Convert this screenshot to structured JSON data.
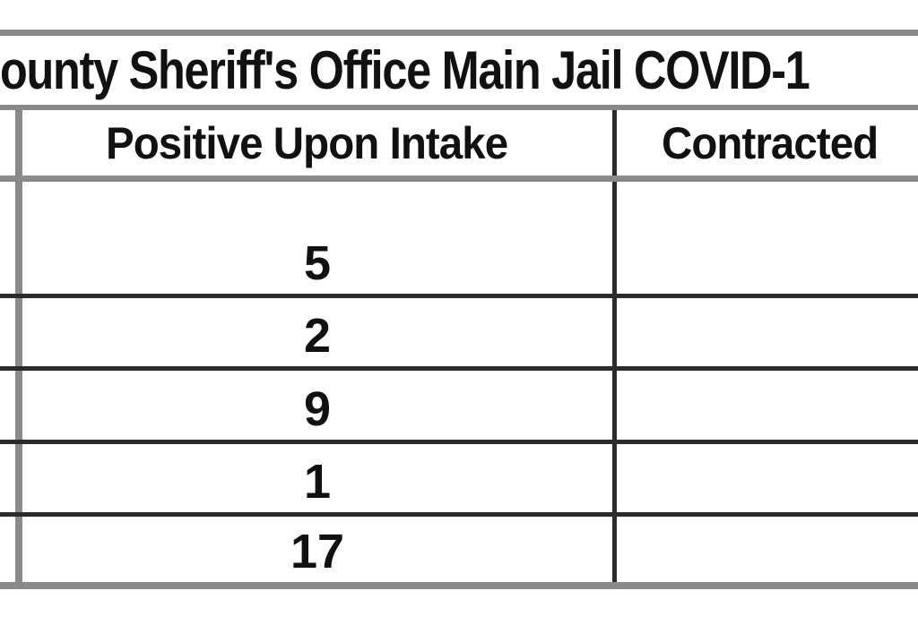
{
  "table": {
    "title_visible": "ounty Sheriff's Office Main Jail COVID-1",
    "headers": {
      "positive": "Positive Upon Intake",
      "contracted": "Contracted"
    },
    "rows": [
      "5",
      "2",
      "9",
      "1",
      "17"
    ]
  },
  "chart_data": {
    "type": "table",
    "title": "ounty Sheriff's Office Main Jail COVID-1",
    "columns": [
      "Positive Upon Intake",
      "Contracted"
    ],
    "rows": [
      [
        "5",
        ""
      ],
      [
        "2",
        ""
      ],
      [
        "9",
        ""
      ],
      [
        "1",
        ""
      ],
      [
        "17",
        ""
      ]
    ],
    "layout_hints": {
      "cropped_left_column": true,
      "cropped_right_edge": true,
      "numbers_alignment": "center-bottom"
    }
  },
  "colors": {
    "background": "#ffffff",
    "border_gray": "#8a8a8a",
    "border_dark": "#2b2b2b",
    "text": "#111111"
  }
}
